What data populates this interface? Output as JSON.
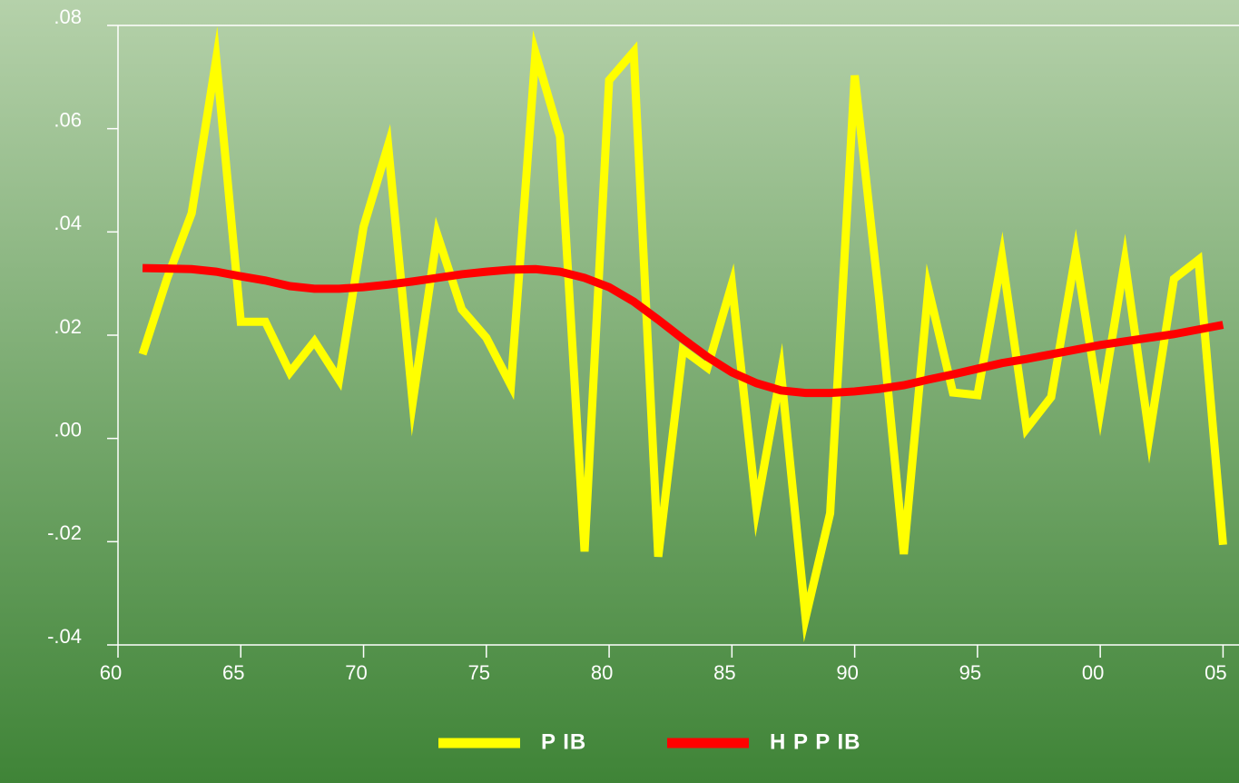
{
  "chart_data": {
    "type": "line",
    "x": [
      1961,
      1962,
      1963,
      1964,
      1965,
      1966,
      1967,
      1968,
      1969,
      1970,
      1971,
      1972,
      1973,
      1974,
      1975,
      1976,
      1977,
      1978,
      1979,
      1980,
      1981,
      1982,
      1983,
      1984,
      1985,
      1986,
      1987,
      1988,
      1989,
      1990,
      1991,
      1992,
      1993,
      1994,
      1995,
      1996,
      1997,
      1998,
      1999,
      2000,
      2001,
      2002,
      2003,
      2004,
      2005
    ],
    "series": [
      {
        "name": "P IB",
        "color": "#ffff00",
        "values": [
          0.0163,
          0.031,
          0.0436,
          0.0735,
          0.0226,
          0.0226,
          0.0128,
          0.0188,
          0.0114,
          0.041,
          0.0568,
          0.007,
          0.0395,
          0.025,
          0.0195,
          0.0103,
          0.0747,
          0.0585,
          -0.0219,
          0.0694,
          0.0749,
          -0.0229,
          0.0172,
          0.0137,
          0.0299,
          -0.0136,
          0.0128,
          -0.0347,
          -0.0145,
          0.0703,
          0.0269,
          -0.0224,
          0.029,
          0.0089,
          0.0084,
          0.0351,
          0.0019,
          0.008,
          0.0357,
          0.0054,
          0.0344,
          0.0005,
          0.0309,
          0.0346,
          -0.0206
        ]
      },
      {
        "name": "H P P IB",
        "color": "#ff0000",
        "values": [
          0.033,
          0.0329,
          0.0328,
          0.0323,
          0.0314,
          0.0306,
          0.0295,
          0.029,
          0.029,
          0.0293,
          0.0298,
          0.0304,
          0.0311,
          0.0318,
          0.0323,
          0.0327,
          0.0328,
          0.0323,
          0.0311,
          0.0293,
          0.0265,
          0.023,
          0.0193,
          0.0158,
          0.0128,
          0.0107,
          0.0093,
          0.0088,
          0.0088,
          0.0091,
          0.0096,
          0.0103,
          0.0114,
          0.0124,
          0.0135,
          0.0146,
          0.0154,
          0.0163,
          0.0172,
          0.0181,
          0.0188,
          0.0195,
          0.0202,
          0.0211,
          0.022
        ]
      }
    ],
    "xlim": [
      1960,
      2005.65
    ],
    "xticks": [
      {
        "value": 1960,
        "label": "60"
      },
      {
        "value": 1965,
        "label": "65"
      },
      {
        "value": 1970,
        "label": "70"
      },
      {
        "value": 1975,
        "label": "75"
      },
      {
        "value": 1980,
        "label": "80"
      },
      {
        "value": 1985,
        "label": "85"
      },
      {
        "value": 1990,
        "label": "90"
      },
      {
        "value": 1995,
        "label": "95"
      },
      {
        "value": 2000,
        "label": "00"
      },
      {
        "value": 2005,
        "label": "05"
      }
    ],
    "ylim": [
      -0.04,
      0.08
    ],
    "yticks": [
      {
        "value": -0.04,
        "label": "-.04"
      },
      {
        "value": -0.02,
        "label": "-.02"
      },
      {
        "value": 0,
        "label": ".00"
      },
      {
        "value": 0.02,
        "label": ".02"
      },
      {
        "value": 0.04,
        "label": ".04"
      },
      {
        "value": 0.06,
        "label": ".06"
      },
      {
        "value": 0.08,
        "label": ".08"
      }
    ],
    "legend": "bottom"
  }
}
